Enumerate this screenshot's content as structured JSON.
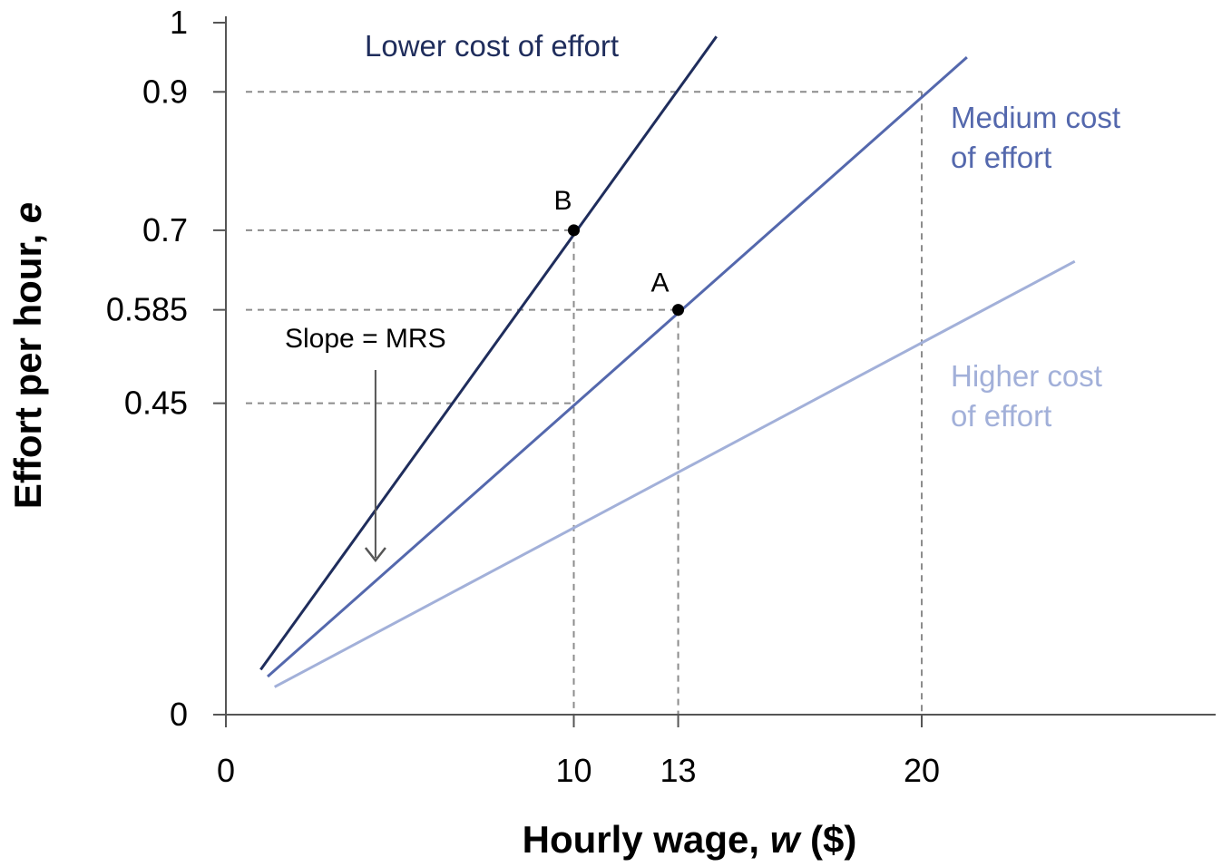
{
  "chart_data": {
    "type": "line",
    "title": "",
    "xlabel": "Hourly wage, ",
    "xlabel_var": "w",
    "xlabel_unit": " ($)",
    "ylabel": "Effort per hour, ",
    "ylabel_var": "e",
    "xlim": [
      0,
      28.5
    ],
    "ylim": [
      0,
      1
    ],
    "x_ticks": [
      {
        "value": 0,
        "label": "0"
      },
      {
        "value": 10,
        "label": "10"
      },
      {
        "value": 13,
        "label": "13"
      },
      {
        "value": 20,
        "label": "20"
      }
    ],
    "y_ticks": [
      {
        "value": 0,
        "label": "0"
      },
      {
        "value": 0.45,
        "label": "0.45"
      },
      {
        "value": 0.585,
        "label": "0.585"
      },
      {
        "value": 0.7,
        "label": "0.7"
      },
      {
        "value": 0.9,
        "label": "0.9"
      },
      {
        "value": 1,
        "label": "1"
      }
    ],
    "series": [
      {
        "name": "Lower cost of effort",
        "label_lines": [
          "Lower cost of effort"
        ],
        "color": "#1f2d5c",
        "x": [
          1.0,
          14.1
        ],
        "y": [
          0.065,
          0.98
        ]
      },
      {
        "name": "Medium cost of effort",
        "label_lines": [
          "Medium cost",
          "of effort"
        ],
        "color": "#5468ad",
        "x": [
          1.2,
          21.3
        ],
        "y": [
          0.055,
          0.95
        ]
      },
      {
        "name": "Higher cost of effort",
        "label_lines": [
          "Higher cost",
          "of effort"
        ],
        "color": "#a2b0d9",
        "x": [
          1.4,
          24.4
        ],
        "y": [
          0.04,
          0.655
        ]
      }
    ],
    "points": [
      {
        "label": "B",
        "x": 10,
        "y": 0.7
      },
      {
        "label": "A",
        "x": 13,
        "y": 0.585
      }
    ],
    "reference_lines": [
      {
        "type": "h",
        "y": 0.9,
        "x_to": 20
      },
      {
        "type": "h",
        "y": 0.7,
        "x_to": 10
      },
      {
        "type": "h",
        "y": 0.585,
        "x_to": 13
      },
      {
        "type": "h",
        "y": 0.45,
        "x_to": 10
      },
      {
        "type": "v",
        "x": 10,
        "y_to": 0.7
      },
      {
        "type": "v",
        "x": 13,
        "y_to": 0.585
      },
      {
        "type": "v",
        "x": 20,
        "y_to": 0.9
      }
    ],
    "annotation": {
      "text": "Slope = MRS",
      "arrow_x": 4.3,
      "arrow_from_y": 0.5,
      "arrow_to_y": 0.22
    },
    "colors": {
      "axis": "#555555",
      "grid": "#8c8c8c",
      "text": "#000000",
      "point": "#000000"
    }
  }
}
